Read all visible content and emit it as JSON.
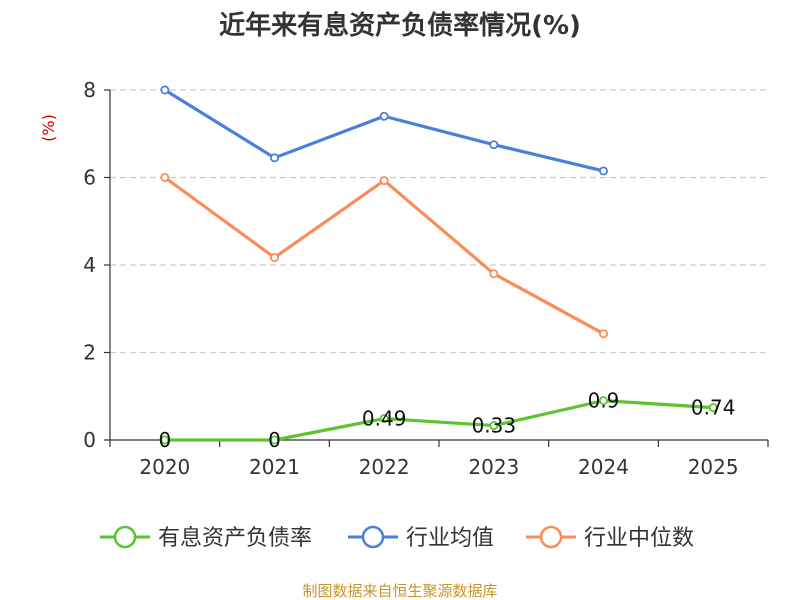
{
  "chart_data": {
    "type": "line",
    "title": "近年来有息资产负债率情况(%)",
    "ylabel": "(%)",
    "xlabel": "",
    "ylim": [
      0,
      8
    ],
    "yticks": [
      0,
      2,
      4,
      6,
      8
    ],
    "categories": [
      "2020",
      "2021",
      "2022",
      "2023",
      "2024",
      "2025"
    ],
    "grid": true,
    "legend_position": "bottom",
    "series": [
      {
        "name": "有息资产负债率",
        "color": "#5dc32f",
        "values": [
          0,
          0,
          0.49,
          0.33,
          0.9,
          0.74
        ],
        "labels": [
          "0",
          "0",
          "0.49",
          "0.33",
          "0.9",
          "0.74"
        ],
        "show_labels": true
      },
      {
        "name": "行业均值",
        "color": "#4a7fdc",
        "values": [
          8.0,
          6.45,
          7.4,
          6.75,
          6.15,
          null
        ],
        "show_labels": false
      },
      {
        "name": "行业中位数",
        "color": "#fb8c5a",
        "values": [
          6.0,
          4.17,
          5.93,
          3.8,
          2.43,
          null
        ],
        "show_labels": false
      }
    ],
    "source": "制图数据来自恒生聚源数据库",
    "colors": {
      "title": "#333333",
      "unit": "#cc0000",
      "source": "#c8962c",
      "axis": "#333333",
      "grid": "#cccccc"
    }
  }
}
